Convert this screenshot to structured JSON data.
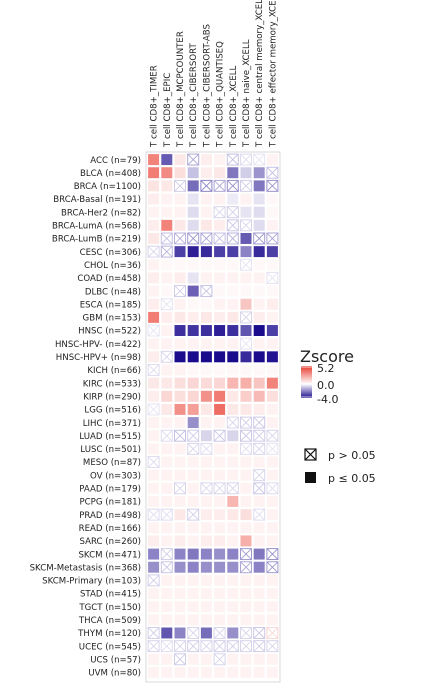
{
  "chart_data": {
    "type": "heatmap",
    "columns": [
      "T cell CD8+_TIMER",
      "T cell CD8+_EPIC",
      "T cell CD8+_MCPCOUNTER",
      "T cell CD8+_CIBERSORT",
      "T cell CD8+_CIBERSORT-ABS",
      "T cell CD8+_QUANTISEQ",
      "T cell CD8+_XCELL",
      "T cell CD8+ naive_XCELL",
      "T cell CD8+ central memory_XCELL",
      "T cell CD8+ effector memory_XCELL"
    ],
    "rows": [
      "ACC (n=79)",
      "BLCA (n=408)",
      "BRCA (n=1100)",
      "BRCA-Basal (n=191)",
      "BRCA-Her2 (n=82)",
      "BRCA-LumA (n=568)",
      "BRCA-LumB (n=219)",
      "CESC (n=306)",
      "CHOL (n=36)",
      "COAD (n=458)",
      "DLBC (n=48)",
      "ESCA (n=185)",
      "GBM (n=153)",
      "HNSC (n=522)",
      "HNSC-HPV- (n=422)",
      "HNSC-HPV+ (n=98)",
      "KICH (n=66)",
      "KIRC (n=533)",
      "KIRP (n=290)",
      "LGG (n=516)",
      "LIHC (n=371)",
      "LUAD (n=515)",
      "LUSC (n=501)",
      "MESO (n=87)",
      "OV (n=303)",
      "PAAD (n=179)",
      "PCPG (n=181)",
      "PRAD (n=498)",
      "READ (n=166)",
      "SARC (n=260)",
      "SKCM (n=471)",
      "SKCM-Metastasis (n=368)",
      "SKCM-Primary (n=103)",
      "STAD (n=415)",
      "TGCT (n=150)",
      "THCA (n=509)",
      "THYM (n=120)",
      "UCEC (n=545)",
      "UCS (n=57)",
      "UVM (n=80)"
    ],
    "values": [
      [
        3.0,
        -2.5,
        0.4,
        -1.2,
        0.3,
        0.2,
        -0.8,
        -0.4,
        -0.3,
        0.2
      ],
      [
        3.2,
        2.8,
        0.6,
        -0.8,
        0.3,
        0.4,
        -2.0,
        -0.6,
        -1.5,
        -0.8
      ],
      [
        0.5,
        0.4,
        -0.6,
        -2.2,
        -1.8,
        -1.2,
        -1.6,
        -0.6,
        -2.0,
        -1.5
      ],
      [
        0.3,
        0.2,
        0.2,
        -0.3,
        0.2,
        0.2,
        -0.2,
        0.2,
        -0.3,
        0.1
      ],
      [
        0.2,
        0.2,
        0.2,
        -0.4,
        0.2,
        -0.5,
        -0.6,
        -0.3,
        -0.4,
        0.1
      ],
      [
        0.3,
        3.0,
        0.4,
        -0.4,
        0.4,
        0.3,
        -0.7,
        -0.5,
        -0.4,
        0.2
      ],
      [
        0.4,
        -0.8,
        -1.0,
        -1.4,
        -1.2,
        -0.8,
        -1.0,
        -2.5,
        -1.4,
        -1.2
      ],
      [
        -0.5,
        -1.0,
        -3.0,
        -3.6,
        -3.4,
        -3.0,
        -3.0,
        -1.8,
        -3.4,
        -3.0
      ],
      [
        0.2,
        0.1,
        0.1,
        0.1,
        0.1,
        0.1,
        0.1,
        -0.3,
        0.1,
        0.1
      ],
      [
        0.3,
        0.2,
        0.3,
        -0.3,
        0.2,
        0.2,
        0.2,
        0.2,
        0.2,
        -0.3
      ],
      [
        0.2,
        0.1,
        -0.6,
        -2.4,
        -0.8,
        0.1,
        0.1,
        0.1,
        0.1,
        0.1
      ],
      [
        0.3,
        -0.3,
        0.2,
        0.1,
        0.1,
        0.2,
        0.2,
        1.2,
        0.2,
        0.3
      ],
      [
        3.2,
        0.3,
        0.4,
        0.3,
        0.4,
        0.3,
        0.4,
        -0.5,
        0.3,
        0.2
      ],
      [
        -0.3,
        0.2,
        -3.3,
        -3.2,
        -3.3,
        -3.6,
        -3.3,
        -2.6,
        -4.0,
        -3.0
      ],
      [
        0.2,
        0.2,
        0.2,
        0.2,
        0.2,
        0.2,
        0.2,
        -0.3,
        0.2,
        0.2
      ],
      [
        0.3,
        -0.5,
        -4.0,
        -4.0,
        -4.0,
        -4.0,
        -4.0,
        -3.4,
        -4.0,
        -3.8
      ],
      [
        -0.4,
        0.2,
        0.2,
        0.1,
        0.1,
        0.1,
        0.1,
        0.1,
        0.1,
        0.1
      ],
      [
        0.4,
        0.4,
        0.6,
        0.8,
        0.7,
        0.8,
        1.6,
        1.8,
        1.2,
        3.0
      ],
      [
        0.3,
        0.8,
        0.6,
        0.8,
        2.6,
        3.2,
        0.4,
        1.0,
        1.5,
        0.6
      ],
      [
        -0.3,
        0.4,
        2.6,
        2.2,
        0.4,
        3.6,
        0.4,
        0.4,
        0.3,
        0.2
      ],
      [
        0.2,
        0.2,
        0.2,
        -1.6,
        0.2,
        0.2,
        -0.5,
        -0.6,
        -0.7,
        0.2
      ],
      [
        0.2,
        -0.4,
        -0.8,
        -0.6,
        -0.5,
        -0.7,
        -0.5,
        -0.7,
        -0.6,
        -0.5
      ],
      [
        0.2,
        0.2,
        0.2,
        -0.5,
        -0.4,
        0.2,
        0.2,
        -0.4,
        -0.5,
        -0.3
      ],
      [
        -0.4,
        0.2,
        0.2,
        0.2,
        0.2,
        0.2,
        0.2,
        0.2,
        0.2,
        0.2
      ],
      [
        0.2,
        0.2,
        0.2,
        0.2,
        0.2,
        0.2,
        0.2,
        0.2,
        -0.5,
        0.2
      ],
      [
        0.2,
        0.2,
        -0.5,
        0.2,
        -0.5,
        -0.5,
        -0.5,
        0.2,
        -0.7,
        -0.4
      ],
      [
        0.2,
        0.2,
        0.2,
        0.2,
        0.2,
        0.2,
        1.6,
        0.2,
        0.2,
        0.2
      ],
      [
        -0.4,
        -0.4,
        0.4,
        -0.6,
        0.3,
        0.3,
        0.4,
        0.6,
        -0.4,
        0.2
      ],
      [
        0.2,
        0.2,
        0.2,
        0.2,
        0.2,
        0.2,
        0.2,
        0.2,
        0.2,
        0.2
      ],
      [
        0.3,
        0.2,
        0.3,
        0.2,
        0.3,
        0.3,
        0.2,
        1.8,
        0.2,
        0.2
      ],
      [
        -1.8,
        -0.6,
        -1.8,
        -2.0,
        -1.8,
        -1.6,
        -1.8,
        -1.4,
        -2.0,
        -1.6
      ],
      [
        -1.6,
        -0.7,
        -1.6,
        -1.8,
        -1.6,
        -1.6,
        -1.6,
        -1.2,
        -1.8,
        -1.4
      ],
      [
        -0.6,
        0.2,
        0.2,
        0.2,
        0.2,
        0.2,
        0.2,
        0.2,
        0.2,
        0.2
      ],
      [
        0.2,
        0.2,
        0.2,
        0.2,
        0.2,
        0.2,
        0.2,
        0.2,
        0.2,
        0.2
      ],
      [
        0.2,
        0.2,
        0.2,
        0.2,
        0.2,
        0.2,
        0.2,
        0.2,
        0.2,
        0.2
      ],
      [
        0.2,
        0.2,
        0.2,
        0.2,
        0.2,
        0.2,
        0.2,
        0.2,
        0.2,
        0.2
      ],
      [
        -0.6,
        -2.6,
        -1.8,
        -0.5,
        -2.2,
        -0.5,
        -1.6,
        -0.5,
        -0.7,
        0.8
      ],
      [
        -0.5,
        -0.4,
        -0.5,
        -0.6,
        -0.5,
        -0.6,
        -0.6,
        -0.5,
        -0.6,
        -0.5
      ],
      [
        0.2,
        0.2,
        -0.6,
        0.2,
        0.2,
        -0.5,
        0.2,
        0.2,
        0.2,
        0.2
      ],
      [
        0.2,
        0.2,
        0.2,
        0.2,
        0.2,
        0.2,
        0.2,
        0.2,
        0.2,
        0.2
      ]
    ],
    "nonsignificant": [
      [
        0,
        0,
        0,
        1,
        0,
        0,
        1,
        1,
        1,
        0
      ],
      [
        0,
        0,
        0,
        0,
        0,
        0,
        0,
        0,
        0,
        1
      ],
      [
        0,
        0,
        1,
        0,
        1,
        1,
        1,
        1,
        0,
        1
      ],
      [
        0,
        0,
        0,
        0,
        0,
        0,
        0,
        0,
        0,
        0
      ],
      [
        0,
        0,
        0,
        0,
        0,
        1,
        1,
        0,
        0,
        0
      ],
      [
        0,
        0,
        0,
        0,
        0,
        0,
        1,
        1,
        0,
        0
      ],
      [
        0,
        1,
        1,
        1,
        1,
        1,
        1,
        0,
        1,
        1
      ],
      [
        1,
        1,
        0,
        0,
        0,
        0,
        0,
        0,
        0,
        0
      ],
      [
        0,
        0,
        0,
        0,
        0,
        0,
        0,
        1,
        0,
        0
      ],
      [
        0,
        0,
        0,
        0,
        0,
        0,
        0,
        0,
        0,
        1
      ],
      [
        0,
        0,
        1,
        0,
        1,
        0,
        0,
        0,
        0,
        0
      ],
      [
        0,
        1,
        0,
        0,
        0,
        0,
        0,
        0,
        0,
        0
      ],
      [
        0,
        0,
        0,
        0,
        0,
        0,
        0,
        1,
        0,
        0
      ],
      [
        1,
        0,
        0,
        0,
        0,
        0,
        0,
        0,
        0,
        0
      ],
      [
        0,
        0,
        0,
        0,
        0,
        0,
        0,
        1,
        0,
        0
      ],
      [
        0,
        1,
        0,
        0,
        0,
        0,
        0,
        0,
        0,
        0
      ],
      [
        1,
        0,
        0,
        0,
        0,
        0,
        0,
        0,
        0,
        0
      ],
      [
        0,
        0,
        0,
        0,
        0,
        0,
        0,
        0,
        0,
        0
      ],
      [
        0,
        0,
        0,
        0,
        0,
        0,
        0,
        0,
        0,
        0
      ],
      [
        1,
        0,
        0,
        0,
        0,
        0,
        0,
        0,
        0,
        0
      ],
      [
        0,
        0,
        0,
        0,
        0,
        0,
        1,
        1,
        1,
        0
      ],
      [
        0,
        1,
        1,
        1,
        0,
        1,
        0,
        1,
        1,
        1
      ],
      [
        0,
        0,
        0,
        1,
        1,
        0,
        0,
        1,
        1,
        1
      ],
      [
        1,
        0,
        0,
        0,
        0,
        0,
        0,
        0,
        0,
        0
      ],
      [
        0,
        0,
        0,
        0,
        0,
        0,
        0,
        0,
        1,
        0
      ],
      [
        0,
        0,
        1,
        0,
        1,
        1,
        1,
        0,
        1,
        1
      ],
      [
        0,
        0,
        0,
        0,
        0,
        0,
        0,
        0,
        0,
        0
      ],
      [
        1,
        1,
        0,
        1,
        0,
        0,
        0,
        0,
        1,
        0
      ],
      [
        0,
        0,
        0,
        0,
        0,
        0,
        0,
        0,
        0,
        0
      ],
      [
        0,
        0,
        0,
        0,
        0,
        0,
        0,
        0,
        0,
        0
      ],
      [
        0,
        1,
        0,
        0,
        0,
        0,
        0,
        1,
        0,
        1
      ],
      [
        0,
        1,
        0,
        0,
        0,
        0,
        0,
        1,
        0,
        1
      ],
      [
        1,
        0,
        0,
        0,
        0,
        0,
        0,
        0,
        0,
        0
      ],
      [
        0,
        0,
        0,
        0,
        0,
        0,
        0,
        0,
        0,
        0
      ],
      [
        0,
        0,
        0,
        0,
        0,
        0,
        0,
        0,
        0,
        0
      ],
      [
        0,
        0,
        0,
        0,
        0,
        0,
        0,
        0,
        0,
        0
      ],
      [
        1,
        0,
        0,
        1,
        0,
        1,
        0,
        1,
        1,
        1
      ],
      [
        1,
        1,
        1,
        1,
        1,
        1,
        1,
        1,
        1,
        1
      ],
      [
        0,
        0,
        1,
        0,
        0,
        1,
        0,
        0,
        0,
        0
      ],
      [
        0,
        0,
        0,
        0,
        0,
        0,
        0,
        0,
        0,
        0
      ]
    ],
    "colorscale": {
      "title": "Zscore",
      "max": 5.2,
      "mid": 0.0,
      "min": -4.0,
      "max_color": "#e8392c",
      "mid_color": "#ffffff",
      "min_color": "#1a0a8c"
    },
    "significance_legend": [
      {
        "symbol": "crossed-box",
        "label": "p > 0.05"
      },
      {
        "symbol": "filled-box",
        "label": "p ≤ 0.05"
      }
    ],
    "legend_labels": {
      "max": "5.2",
      "mid": "0.0",
      "min": "-4.0"
    },
    "grid": false
  }
}
